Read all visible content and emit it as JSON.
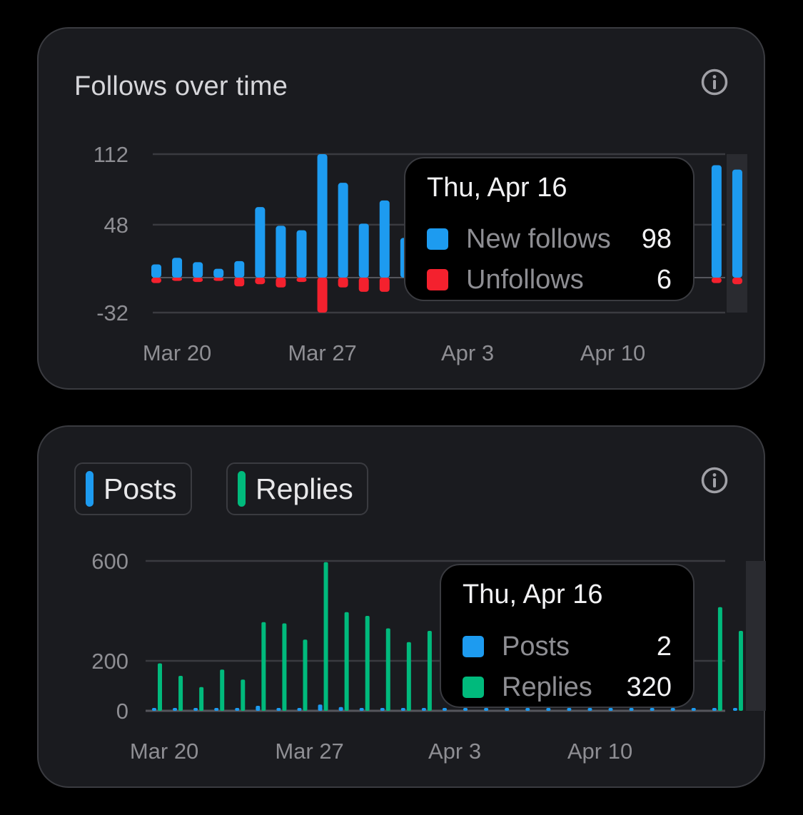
{
  "colors": {
    "blue": "#1d9bf0",
    "red": "#f4212e",
    "green": "#00ba7c",
    "grid": "#3a3b40",
    "card": "#1a1b1f",
    "hover_band": "#2a2b30"
  },
  "follows_card": {
    "title": "Follows over time",
    "info_icon": "info-circle-icon",
    "tooltip": {
      "date": "Thu, Apr 16",
      "rows": [
        {
          "name": "New follows",
          "value": "98",
          "color": "#1d9bf0"
        },
        {
          "name": "Unfollows",
          "value": "6",
          "color": "#f4212e"
        }
      ]
    }
  },
  "activity_card": {
    "info_icon": "info-circle-icon",
    "legend": [
      {
        "label": "Posts",
        "color": "#1d9bf0"
      },
      {
        "label": "Replies",
        "color": "#00ba7c"
      }
    ],
    "tooltip": {
      "date": "Thu, Apr 16",
      "rows": [
        {
          "name": "Posts",
          "value": "2",
          "color": "#1d9bf0"
        },
        {
          "name": "Replies",
          "value": "320",
          "color": "#00ba7c"
        }
      ]
    }
  },
  "chart_data": [
    {
      "type": "bar",
      "title": "Follows over time",
      "x_tick_labels": [
        "Mar 20",
        "Mar 27",
        "Apr 3",
        "Apr 10"
      ],
      "y_ticks": [
        112,
        48,
        -32
      ],
      "ylim": [
        -32,
        112
      ],
      "categories": [
        "Mar 19",
        "Mar 20",
        "Mar 21",
        "Mar 22",
        "Mar 23",
        "Mar 24",
        "Mar 25",
        "Mar 26",
        "Mar 27",
        "Mar 28",
        "Mar 29",
        "Mar 30",
        "Mar 31",
        "Apr 1",
        "Apr 2",
        "Apr 3",
        "Apr 4",
        "Apr 5",
        "Apr 6",
        "Apr 7",
        "Apr 8",
        "Apr 9",
        "Apr 10",
        "Apr 11",
        "Apr 12",
        "Apr 13",
        "Apr 14",
        "Apr 15",
        "Apr 16"
      ],
      "series": [
        {
          "name": "New follows",
          "values": [
            12,
            18,
            14,
            8,
            15,
            64,
            47,
            43,
            112,
            86,
            49,
            70,
            36,
            null,
            null,
            null,
            null,
            null,
            null,
            null,
            null,
            null,
            null,
            null,
            null,
            null,
            null,
            102,
            98
          ]
        },
        {
          "name": "Unfollows",
          "values": [
            -5,
            -3,
            -4,
            -3,
            -8,
            -6,
            -9,
            -4,
            -32,
            -9,
            -13,
            -13,
            null,
            null,
            null,
            null,
            null,
            null,
            null,
            null,
            null,
            null,
            null,
            null,
            null,
            null,
            null,
            -5,
            -6
          ]
        }
      ],
      "highlighted": "Apr 16",
      "grid": true
    },
    {
      "type": "bar",
      "legend": [
        "Posts",
        "Replies"
      ],
      "x_tick_labels": [
        "Mar 20",
        "Mar 27",
        "Apr 3",
        "Apr 10"
      ],
      "y_ticks": [
        600,
        200,
        0
      ],
      "ylim": [
        0,
        600
      ],
      "categories": [
        "Mar 19",
        "Mar 20",
        "Mar 21",
        "Mar 22",
        "Mar 23",
        "Mar 24",
        "Mar 25",
        "Mar 26",
        "Mar 27",
        "Mar 28",
        "Mar 29",
        "Mar 30",
        "Mar 31",
        "Apr 1",
        "Apr 2",
        "Apr 3",
        "Apr 4",
        "Apr 5",
        "Apr 6",
        "Apr 7",
        "Apr 8",
        "Apr 9",
        "Apr 10",
        "Apr 11",
        "Apr 12",
        "Apr 13",
        "Apr 14",
        "Apr 15",
        "Apr 16"
      ],
      "series": [
        {
          "name": "Posts",
          "values": [
            5,
            6,
            5,
            4,
            5,
            20,
            10,
            10,
            25,
            15,
            10,
            10,
            10,
            10,
            10,
            10,
            10,
            10,
            10,
            10,
            10,
            10,
            10,
            10,
            10,
            10,
            10,
            10,
            2
          ]
        },
        {
          "name": "Replies",
          "values": [
            190,
            140,
            95,
            165,
            125,
            355,
            350,
            285,
            595,
            395,
            380,
            330,
            275,
            320,
            null,
            null,
            null,
            null,
            null,
            null,
            null,
            null,
            null,
            null,
            null,
            null,
            null,
            415,
            320
          ]
        }
      ],
      "highlighted": "Apr 16",
      "grid": true
    }
  ]
}
